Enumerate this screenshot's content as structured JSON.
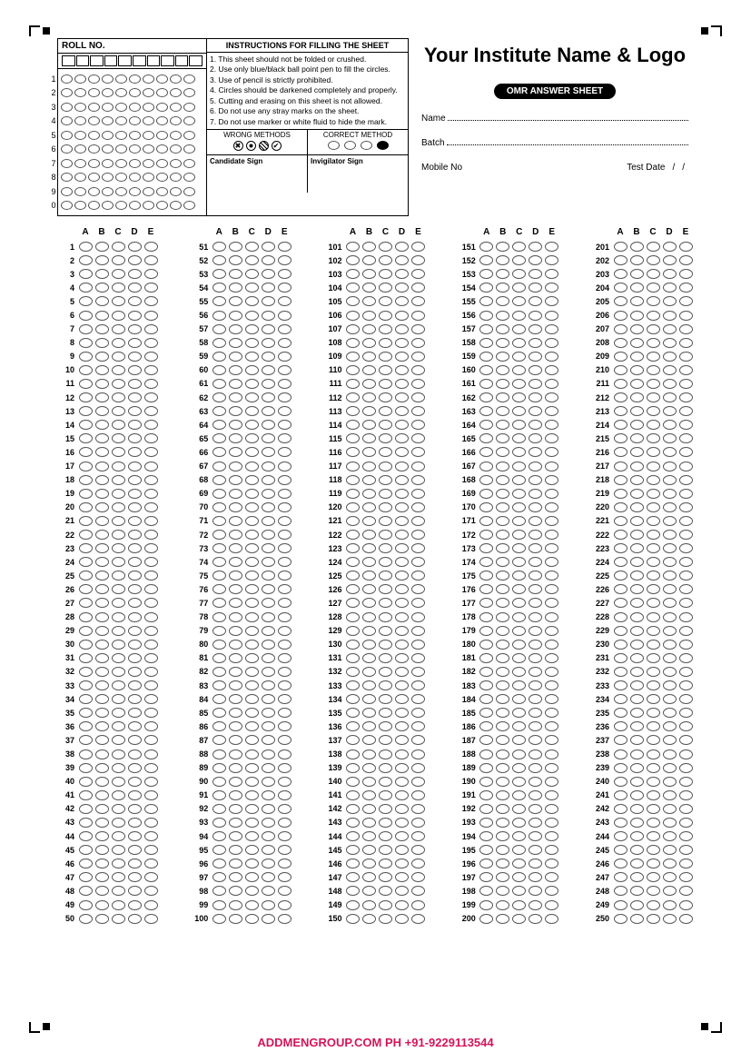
{
  "roll": {
    "title": "ROLL NO.",
    "digits": [
      "1",
      "2",
      "3",
      "4",
      "5",
      "6",
      "7",
      "8",
      "9",
      "0"
    ],
    "columns": 10
  },
  "instructions": {
    "title": "INSTRUCTIONS FOR FILLING THE SHEET",
    "items": [
      "1. This sheet should not be folded or crushed.",
      "2. Use only blue/black ball point pen to fill the circles.",
      "3. Use of pencil is strictly prohibited.",
      "4. Circles should be darkened completely and properly.",
      "5. Cutting and erasing on this sheet is not allowed.",
      "6. Do not use any stray marks on the sheet.",
      "7. Do not use marker or white fluid to hide the mark."
    ],
    "wrong_label": "WRONG METHODS",
    "correct_label": "CORRECT METHOD",
    "candidate_sign": "Candidate Sign",
    "invigilator_sign": "Invigilator Sign"
  },
  "header": {
    "institute": "Your Institute Name & Logo",
    "badge": "OMR ANSWER SHEET",
    "name_label": "Name",
    "batch_label": "Batch",
    "mobile_label": "Mobile No",
    "testdate_label": "Test Date",
    "date_sep": "/"
  },
  "answers": {
    "options": [
      "A",
      "B",
      "C",
      "D",
      "E"
    ],
    "columns_start": [
      1,
      51,
      101,
      151,
      201
    ],
    "rows_per_column": 50
  },
  "footer": {
    "text": "ADDMENGROUP.COM   PH +91-9229113544",
    "color": "#d4145a"
  },
  "style": {
    "bubble_border": "#555555",
    "text_color": "#000000",
    "background": "#ffffff"
  }
}
